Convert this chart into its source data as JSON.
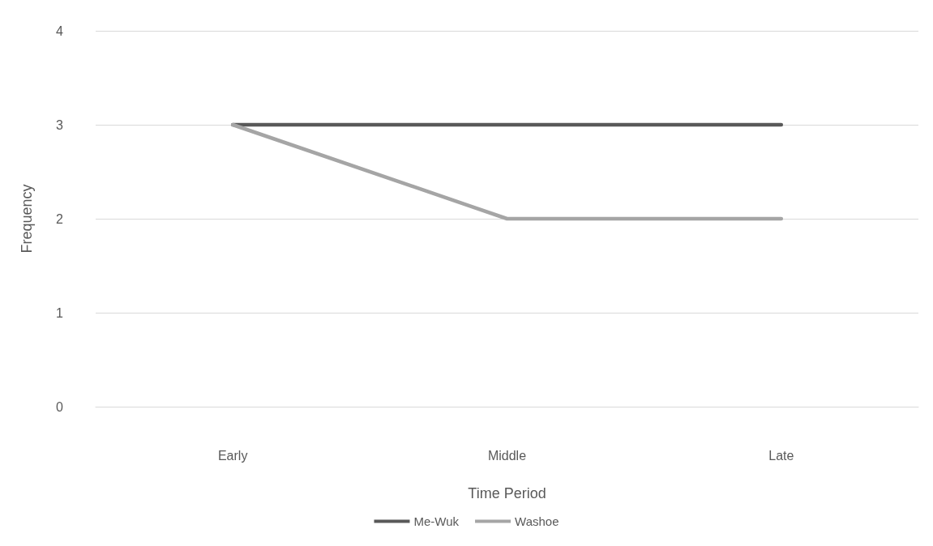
{
  "chart_data": {
    "type": "line",
    "xlabel": "Time Period",
    "ylabel": "Frequency",
    "categories": [
      "Early",
      "Middle",
      "Late"
    ],
    "series": [
      {
        "name": "Me-Wuk",
        "color": "#595959",
        "values": [
          3,
          3,
          3
        ]
      },
      {
        "name": "Washoe",
        "color": "#a5a5a5",
        "values": [
          3,
          2,
          2
        ]
      }
    ],
    "ylim": [
      0,
      4
    ],
    "yticks": [
      0,
      1,
      2,
      3,
      4
    ],
    "grid": "y",
    "legend": "bottom",
    "marker": "none",
    "line_style": "solid"
  }
}
